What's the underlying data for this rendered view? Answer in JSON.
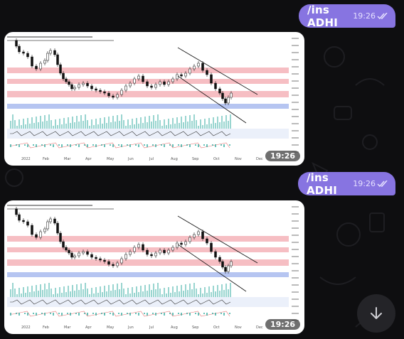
{
  "messages": [
    {
      "type": "outgoing-text",
      "text": "/ins ADHI",
      "time": "19:26",
      "status": "read"
    },
    {
      "type": "incoming-photo",
      "time": "19:26"
    },
    {
      "type": "outgoing-text",
      "text": "/ins ADHI",
      "time": "19:26",
      "status": "read"
    },
    {
      "type": "incoming-photo",
      "time": "19:26"
    }
  ],
  "photo_chart": {
    "x_ticks": [
      "2022",
      "Feb",
      "Mar",
      "Apr",
      "May",
      "Jun",
      "Jul",
      "Aug",
      "Sep",
      "Oct",
      "Nov",
      "Dec"
    ],
    "note": "chart image contents are too small to read precisely"
  },
  "scroll_button": {
    "icon": "arrow-down-icon"
  },
  "colors": {
    "outgoing_bubble": "#8774e1",
    "background": "#0e0e10",
    "resistance_zone": "#f4b3b8",
    "support_zone": "#aebff0",
    "fab": "#242428"
  }
}
